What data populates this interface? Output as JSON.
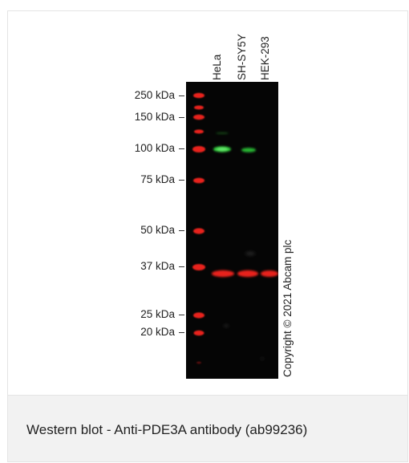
{
  "caption": "Western blot - Anti-PDE3A antibody (ab99236)",
  "markers": [
    "250 kDa",
    "150 kDa",
    "100 kDa",
    "75 kDa",
    "50 kDa",
    "37 kDa",
    "25 kDa",
    "20 kDa"
  ],
  "lanes": [
    "HeLa",
    "SH-SY5Y",
    "HEK-293"
  ],
  "copyright": "Copyright © 2021 Abcam plc",
  "colors": {
    "ladder": "#e8231f",
    "band_green": "#2fd23a",
    "band_red": "#e8231f",
    "blot_background": "#050505"
  }
}
